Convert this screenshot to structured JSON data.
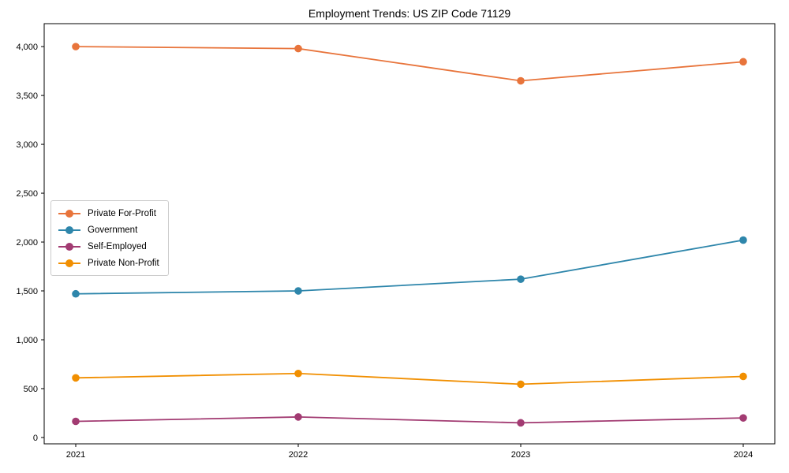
{
  "chart_data": {
    "type": "line",
    "title": "Employment Trends: US ZIP Code 71129",
    "categories": [
      "2021",
      "2022",
      "2023",
      "2024"
    ],
    "series": [
      {
        "name": "Private For-Profit",
        "color": "#E8743B",
        "values": [
          4000,
          3980,
          3650,
          3845
        ]
      },
      {
        "name": "Government",
        "color": "#2E86AB",
        "values": [
          1470,
          1500,
          1620,
          2020
        ]
      },
      {
        "name": "Self-Employed",
        "color": "#A23B72",
        "values": [
          165,
          210,
          150,
          200
        ]
      },
      {
        "name": "Private Non-Profit",
        "color": "#F18F01",
        "values": [
          610,
          655,
          545,
          625
        ]
      }
    ],
    "xlabel": "",
    "ylabel": "",
    "ylim": [
      -65,
      4235
    ],
    "y_ticks": [
      0,
      500,
      1000,
      1500,
      2000,
      2500,
      3000,
      3500,
      4000
    ],
    "y_tick_labels": [
      "0",
      "500",
      "1,000",
      "1,500",
      "2,000",
      "2,500",
      "3,000",
      "3,500",
      "4,000"
    ],
    "grid": false,
    "legend_position": "center left",
    "marker": "circle",
    "axis_color": "#000000"
  }
}
